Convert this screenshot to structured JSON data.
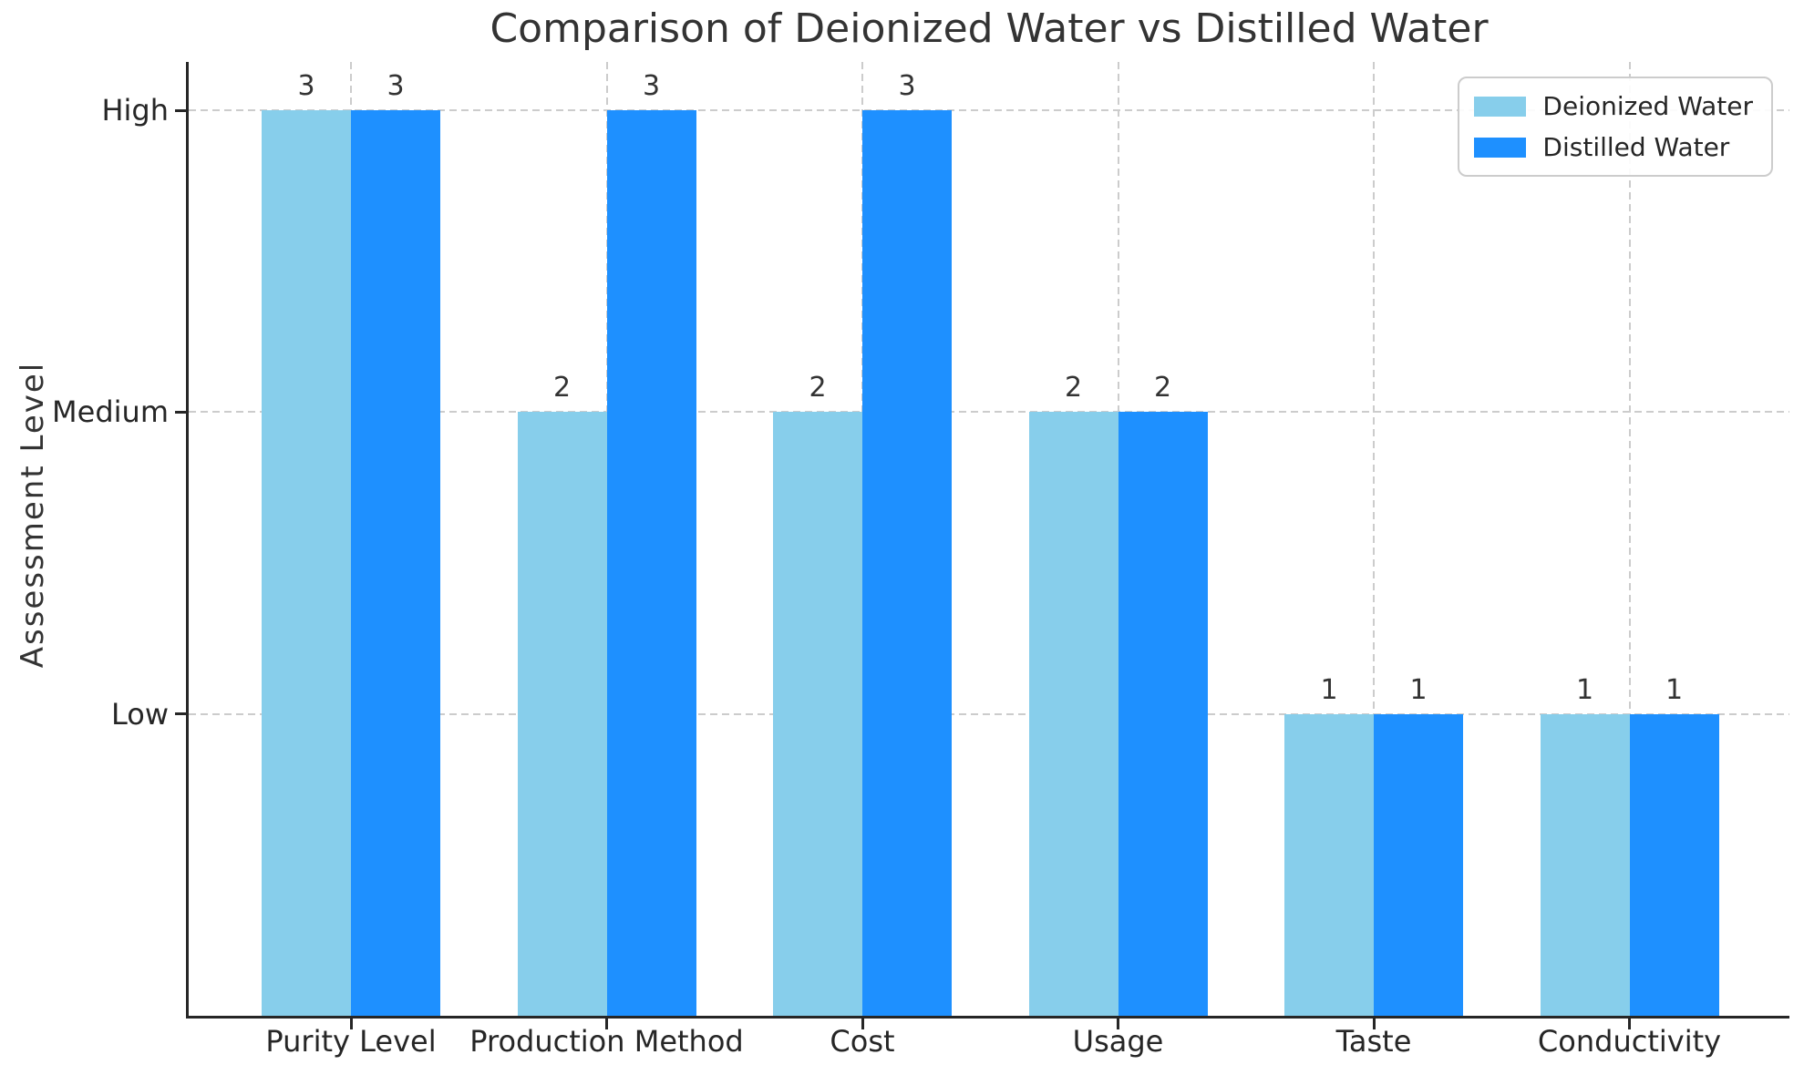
{
  "title": "Comparison of Deionized Water vs Distilled Water",
  "chart_data": {
    "type": "bar",
    "title": "Comparison of Deionized Water vs Distilled Water",
    "categories": [
      "Purity Level",
      "Production Method",
      "Cost",
      "Usage",
      "Taste",
      "Conductivity"
    ],
    "series": [
      {
        "name": "Deionized Water",
        "color": "#87CEEB",
        "values": [
          3,
          2,
          2,
          2,
          1,
          1
        ]
      },
      {
        "name": "Distilled Water",
        "color": "#1E90FF",
        "values": [
          3,
          3,
          3,
          2,
          1,
          1
        ]
      }
    ],
    "xlabel": "",
    "ylabel": "Assessment Level",
    "yticks": [
      {
        "value": 1,
        "label": "Low"
      },
      {
        "value": 2,
        "label": "Medium"
      },
      {
        "value": 3,
        "label": "High"
      }
    ],
    "ylim": [
      0,
      3.16
    ],
    "grid": true,
    "grid_style": "dashed",
    "legend_position": "upper right",
    "bar_value_labels": true,
    "colors": {
      "grid": "#cccccc",
      "spine": "#262626",
      "text": "#333333"
    }
  }
}
